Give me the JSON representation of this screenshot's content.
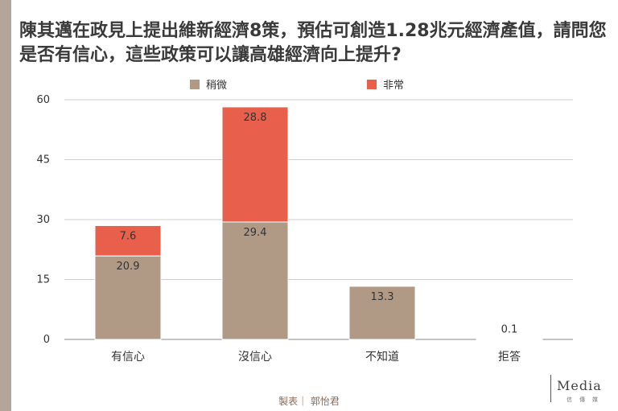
{
  "title": "陳其邁在政見上提出維新經濟8策，預估可創造1.28兆元經濟產值，請問您是否有信心，這些政策可以讓高雄經濟向上提升?",
  "credit": "製表｜ 郭怡君",
  "logo": {
    "word": "Media",
    "sub": "信傳媒"
  },
  "chart_data": {
    "type": "bar",
    "stacked": true,
    "categories": [
      "有信心",
      "沒信心",
      "不知道",
      "拒答"
    ],
    "series": [
      {
        "name": "稍微",
        "color": "#b09a86",
        "values": [
          20.9,
          29.4,
          13.3,
          0.1
        ]
      },
      {
        "name": "非常",
        "color": "#e8604c",
        "values": [
          7.6,
          28.8,
          null,
          null
        ]
      }
    ],
    "ylim": [
      0,
      60
    ],
    "yticks": [
      0,
      15,
      30,
      45,
      60
    ],
    "grid": true,
    "legend": "top-center"
  }
}
